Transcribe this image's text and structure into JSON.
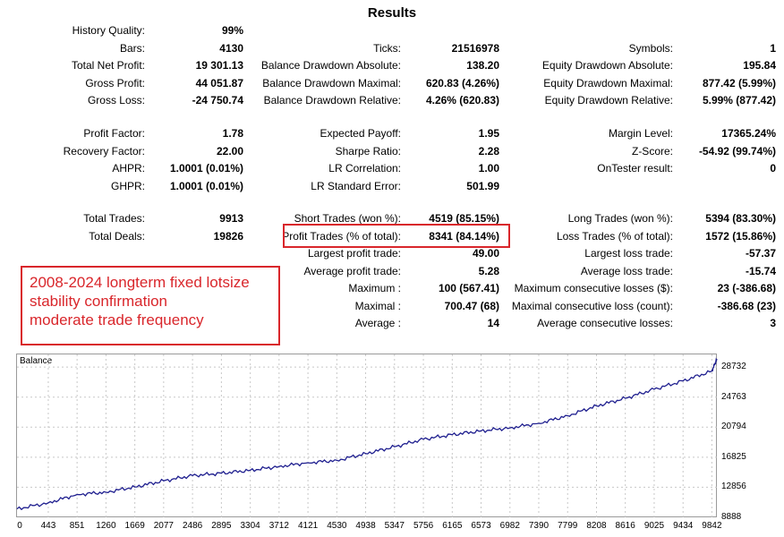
{
  "title": "Results",
  "col1": [
    {
      "label": "History Quality:",
      "value": "99%"
    },
    {
      "label": "Bars:",
      "value": "4130"
    },
    {
      "label": "Total Net Profit:",
      "value": "19 301.13"
    },
    {
      "label": "Gross Profit:",
      "value": "44 051.87"
    },
    {
      "label": "Gross Loss:",
      "value": "-24 750.74"
    },
    {
      "label": "Profit Factor:",
      "value": "1.78"
    },
    {
      "label": "Recovery Factor:",
      "value": "22.00"
    },
    {
      "label": "AHPR:",
      "value": "1.0001 (0.01%)"
    },
    {
      "label": "GHPR:",
      "value": "1.0001 (0.01%)"
    },
    {
      "label": "Total Trades:",
      "value": "9913"
    },
    {
      "label": "Total Deals:",
      "value": "19826"
    }
  ],
  "col2": [
    {
      "label": "Ticks:",
      "value": "21516978"
    },
    {
      "label": "Balance Drawdown Absolute:",
      "value": "138.20"
    },
    {
      "label": "Balance Drawdown Maximal:",
      "value": "620.83 (4.26%)"
    },
    {
      "label": "Balance Drawdown Relative:",
      "value": "4.26% (620.83)"
    },
    {
      "label": "Expected Payoff:",
      "value": "1.95"
    },
    {
      "label": "Sharpe Ratio:",
      "value": "2.28"
    },
    {
      "label": "LR Correlation:",
      "value": "1.00"
    },
    {
      "label": "LR Standard Error:",
      "value": "501.99"
    },
    {
      "label": "Short Trades (won %):",
      "value": "4519 (85.15%)"
    },
    {
      "label": "Profit Trades (% of total):",
      "value": "8341 (84.14%)"
    },
    {
      "label": "Largest profit trade:",
      "value": "49.00"
    },
    {
      "label": "Average profit trade:",
      "value": "5.28"
    },
    {
      "label": "Maximum :",
      "value": "100 (567.41)"
    },
    {
      "label": "Maximal :",
      "value": "700.47 (68)"
    },
    {
      "label": "Average :",
      "value": "14"
    }
  ],
  "col3": [
    {
      "label": "Symbols:",
      "value": "1"
    },
    {
      "label": "Equity Drawdown Absolute:",
      "value": "195.84"
    },
    {
      "label": "Equity Drawdown Maximal:",
      "value": "877.42 (5.99%)"
    },
    {
      "label": "Equity Drawdown Relative:",
      "value": "5.99% (877.42)"
    },
    {
      "label": "Margin Level:",
      "value": "17365.24%"
    },
    {
      "label": "Z-Score:",
      "value": "-54.92 (99.74%)"
    },
    {
      "label": "OnTester result:",
      "value": "0"
    },
    {
      "label": "Long Trades (won %):",
      "value": "5394 (83.30%)"
    },
    {
      "label": "Loss Trades (% of total):",
      "value": "1572 (15.86%)"
    },
    {
      "label": "Largest loss trade:",
      "value": "-57.37"
    },
    {
      "label": "Average loss trade:",
      "value": "-15.74"
    },
    {
      "label": "Maximum consecutive losses ($):",
      "value": "23 (-386.68)"
    },
    {
      "label": "Maximal consecutive loss (count):",
      "value": "-386.68 (23)"
    },
    {
      "label": "Average consecutive losses:",
      "value": "3"
    }
  ],
  "note": {
    "lines": [
      "2008-2024 longterm fixed lotsize",
      "stability confirmation",
      "moderate trade frequency"
    ],
    "color": "#d9262b"
  },
  "chart_data": {
    "type": "line",
    "title": "Balance",
    "series": [
      {
        "name": "Balance",
        "color": "#1f1f8f"
      }
    ],
    "x_ticks": [
      "0",
      "443",
      "851",
      "1260",
      "1669",
      "2077",
      "2486",
      "2895",
      "3304",
      "3712",
      "4121",
      "4530",
      "4938",
      "5347",
      "5756",
      "6165",
      "6573",
      "6982",
      "7390",
      "7799",
      "8208",
      "8616",
      "9025",
      "9434",
      "9842"
    ],
    "y_ticks": [
      "28732",
      "24763",
      "20794",
      "16825",
      "12856",
      "8888"
    ],
    "ylim": [
      8888,
      30400
    ],
    "xlim": [
      0,
      9913
    ],
    "x": [
      0,
      443,
      851,
      1260,
      1669,
      2077,
      2486,
      2895,
      3304,
      3712,
      4121,
      4530,
      4938,
      5347,
      5756,
      6165,
      6573,
      6982,
      7390,
      7799,
      8208,
      8616,
      9025,
      9434,
      9842,
      9913
    ],
    "values": [
      10000,
      10800,
      11900,
      12200,
      12900,
      13700,
      14400,
      14700,
      15100,
      15600,
      16100,
      16400,
      17300,
      18200,
      19200,
      19800,
      20300,
      20700,
      21300,
      22300,
      23600,
      24600,
      25800,
      26900,
      28200,
      29800
    ],
    "grid": true
  }
}
